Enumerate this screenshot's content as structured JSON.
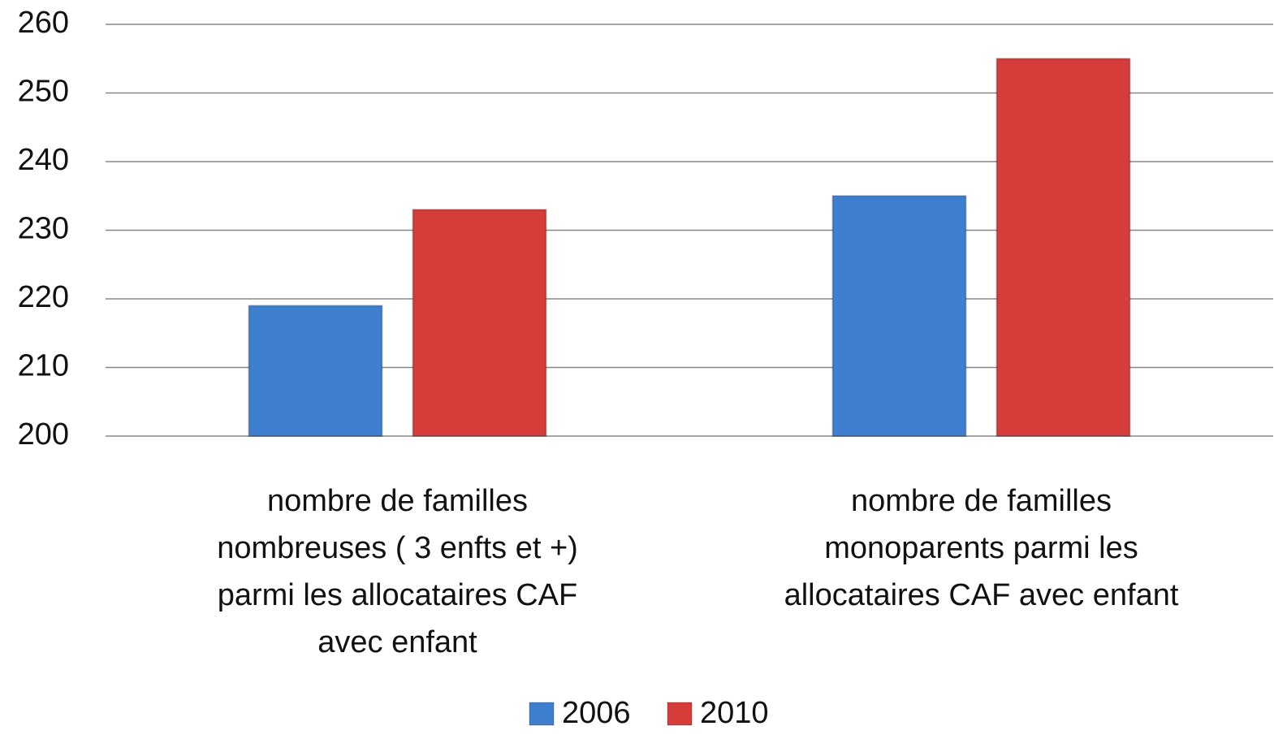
{
  "chart_data": {
    "type": "bar",
    "categories": [
      "nombre de familles nombreuses ( 3 enfts et +)  parmi les allocataires CAF avec enfant",
      "nombre de familles monoparents parmi les allocataires CAF avec enfant"
    ],
    "series": [
      {
        "name": "2006",
        "color": "#3f7fcf",
        "values": [
          219,
          235
        ]
      },
      {
        "name": "2010",
        "color": "#d63d3a",
        "values": [
          233,
          255
        ]
      }
    ],
    "ylim": [
      200,
      260
    ],
    "yticks": [
      200,
      210,
      220,
      230,
      240,
      250,
      260
    ],
    "grid": true,
    "legend": "bottom"
  }
}
